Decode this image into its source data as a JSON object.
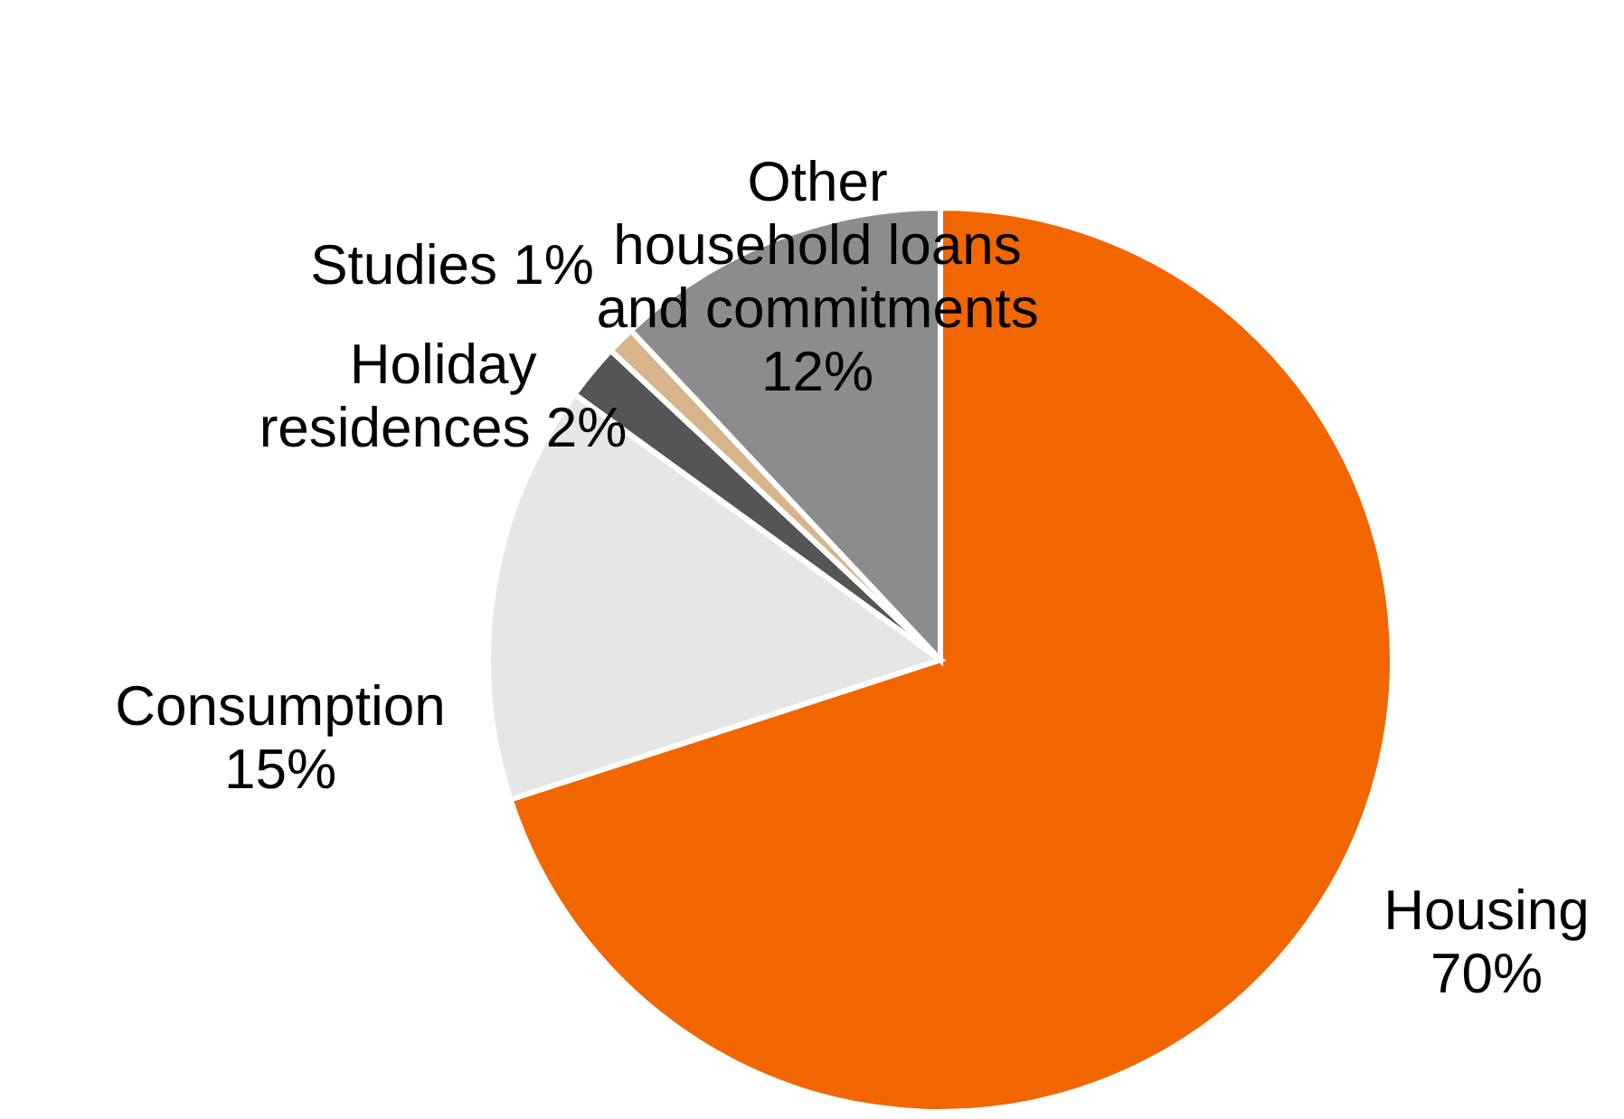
{
  "chart_data": {
    "type": "pie",
    "categories": [
      "Housing",
      "Consumption",
      "Holiday residences",
      "Studies",
      "Other household loans and commitments"
    ],
    "values": [
      70,
      15,
      2,
      1,
      12
    ],
    "value_labels": [
      "70%",
      "15%",
      "2%",
      "1%",
      "12%"
    ],
    "colors": [
      "#f26600",
      "#e6e6e6",
      "#555555",
      "#d8b48a",
      "#8c8c8c"
    ]
  }
}
